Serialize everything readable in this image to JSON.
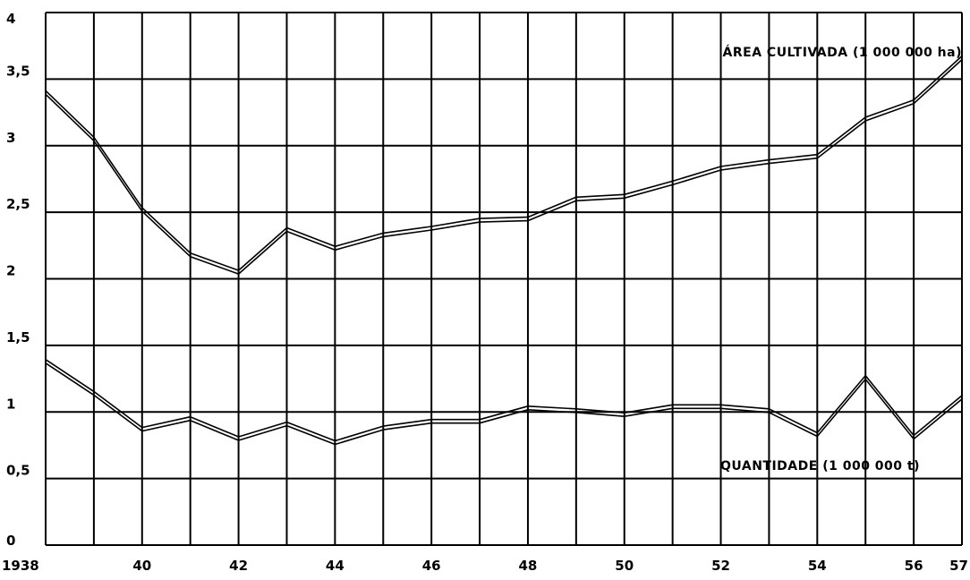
{
  "chart_data": {
    "type": "line",
    "title": "",
    "xlabel": "",
    "ylabel": "",
    "ylim": [
      0,
      4
    ],
    "xlim": [
      1938,
      1957
    ],
    "grid": true,
    "x": [
      1938,
      1939,
      1940,
      1941,
      1942,
      1943,
      1944,
      1945,
      1946,
      1947,
      1948,
      1949,
      1950,
      1951,
      1952,
      1953,
      1954,
      1955,
      1956,
      1957
    ],
    "x_tick_labels": [
      "1938",
      "40",
      "42",
      "44",
      "46",
      "48",
      "50",
      "52",
      "54",
      "56",
      "57"
    ],
    "x_tick_values": [
      1938,
      1940,
      1942,
      1944,
      1946,
      1948,
      1950,
      1952,
      1954,
      1956,
      1957
    ],
    "y_tick_labels": [
      "0",
      "0,5",
      "1",
      "1,5",
      "2",
      "2,5",
      "3",
      "3,5",
      "4"
    ],
    "y_tick_values": [
      0,
      0.5,
      1,
      1.5,
      2,
      2.5,
      3,
      3.5,
      4
    ],
    "series": [
      {
        "name": "ÁREA CULTIVADA (1 000 000 ha)",
        "values": [
          3.4,
          3.05,
          2.52,
          2.18,
          2.05,
          2.37,
          2.23,
          2.33,
          2.38,
          2.44,
          2.45,
          2.6,
          2.62,
          2.72,
          2.83,
          2.88,
          2.92,
          3.2,
          3.33,
          3.66
        ]
      },
      {
        "name": "QUANTIDADE (1 000 000 t)",
        "values": [
          1.38,
          1.14,
          0.87,
          0.95,
          0.8,
          0.91,
          0.77,
          0.88,
          0.93,
          0.93,
          1.03,
          1.01,
          0.98,
          1.04,
          1.04,
          1.01,
          0.83,
          1.26,
          0.81,
          1.11
        ]
      }
    ]
  }
}
